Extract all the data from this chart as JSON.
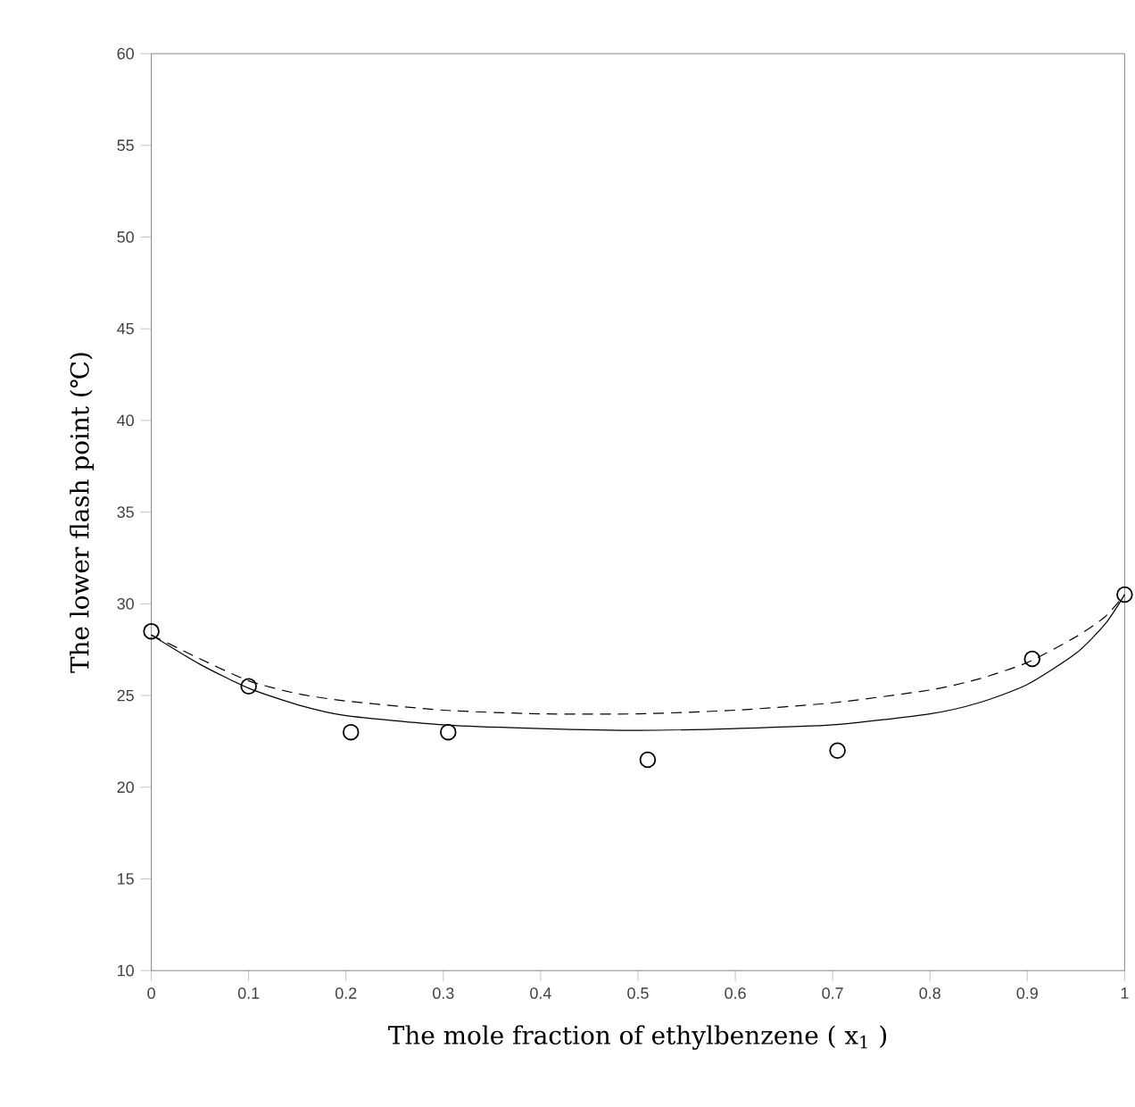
{
  "chart_data": {
    "type": "scatter",
    "xlabel": "The mole fraction of ethylbenzene ( x$_{1}$ )",
    "ylabel": "The lower flash point (℃)",
    "xlim": [
      0,
      1
    ],
    "ylim": [
      10,
      60
    ],
    "xticks": [
      0,
      0.1,
      0.2,
      0.3,
      0.4,
      0.5,
      0.6,
      0.7,
      0.8,
      0.9,
      1
    ],
    "yticks": [
      10,
      15,
      20,
      25,
      30,
      35,
      40,
      45,
      50,
      55,
      60
    ],
    "grid": false,
    "series": [
      {
        "marker": "circle",
        "color": "#000000",
        "x": [
          0,
          0.1,
          0.205,
          0.305,
          0.51,
          0.705,
          0.905,
          1
        ],
        "values": [
          28.5,
          25.5,
          23,
          23,
          21.5,
          22,
          27,
          30.5
        ]
      },
      {
        "type": "line",
        "line_style": "solid",
        "color": "#000000",
        "x": [
          0,
          0.05,
          0.1,
          0.15,
          0.2,
          0.3,
          0.4,
          0.5,
          0.6,
          0.7,
          0.8,
          0.85,
          0.9,
          0.95,
          0.98,
          1
        ],
        "values": [
          28.3,
          26.7,
          25.4,
          24.5,
          23.9,
          23.4,
          23.2,
          23.1,
          23.2,
          23.4,
          24.0,
          24.6,
          25.6,
          27.3,
          28.9,
          30.5
        ]
      },
      {
        "type": "line",
        "line_style": "dashed",
        "color": "#000000",
        "x": [
          0,
          0.05,
          0.1,
          0.15,
          0.2,
          0.3,
          0.4,
          0.5,
          0.6,
          0.7,
          0.8,
          0.85,
          0.9,
          0.95,
          0.98,
          1
        ],
        "values": [
          28.3,
          27.0,
          25.8,
          25.1,
          24.7,
          24.2,
          24.0,
          24.0,
          24.2,
          24.6,
          25.3,
          25.9,
          26.8,
          28.2,
          29.3,
          30.5
        ]
      }
    ]
  }
}
